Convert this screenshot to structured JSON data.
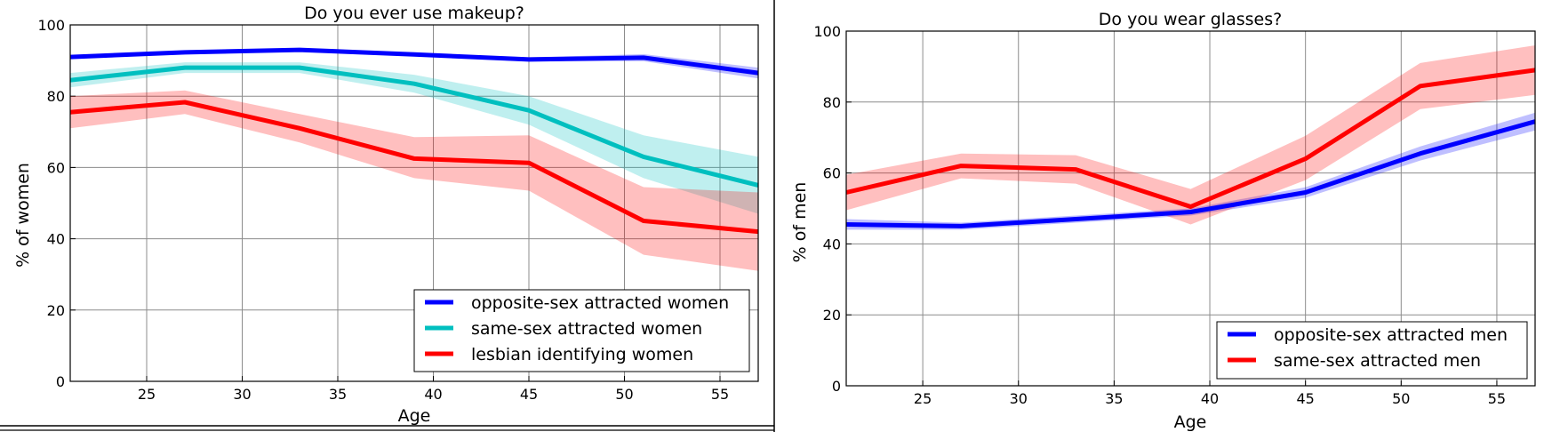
{
  "chart_data": [
    {
      "type": "line",
      "title": "Do you ever use makeup?",
      "xlabel": "Age",
      "ylabel": "% of women",
      "xlim": [
        21,
        57
      ],
      "ylim": [
        0,
        100
      ],
      "xticks": [
        25,
        30,
        35,
        40,
        45,
        50,
        55
      ],
      "yticks": [
        0,
        20,
        40,
        60,
        80,
        100
      ],
      "grid": true,
      "legend_position": "lower-right",
      "x": [
        21,
        27,
        33,
        39,
        45,
        51,
        57
      ],
      "series": [
        {
          "name": "opposite-sex attracted women",
          "color": "#0000ff",
          "values": [
            91,
            92.3,
            93,
            91.7,
            90.3,
            90.8,
            86.5
          ],
          "lower": [
            90.5,
            91.8,
            92.5,
            91.2,
            89.7,
            89.8,
            85
          ],
          "upper": [
            91.5,
            92.8,
            93.5,
            92.2,
            90.9,
            91.8,
            88
          ]
        },
        {
          "name": "same-sex attracted women",
          "color": "#00bfbf",
          "values": [
            84.5,
            88,
            88,
            83.5,
            76,
            63,
            55
          ],
          "lower": [
            82.5,
            86.5,
            86.5,
            81,
            72,
            57,
            47
          ],
          "upper": [
            86.5,
            89.5,
            89.5,
            86,
            80,
            69,
            63
          ]
        },
        {
          "name": "lesbian identifying women",
          "color": "#ff0000",
          "values": [
            75.5,
            78.3,
            71,
            62.5,
            61.3,
            45,
            42
          ],
          "lower": [
            71,
            75,
            67,
            57,
            53.5,
            35.5,
            31
          ],
          "upper": [
            80,
            81.6,
            75,
            68.5,
            69,
            54.5,
            53
          ]
        }
      ]
    },
    {
      "type": "line",
      "title": "Do you wear glasses?",
      "xlabel": "Age",
      "ylabel": "%  of men",
      "xlim": [
        21,
        57
      ],
      "ylim": [
        0,
        100
      ],
      "xticks": [
        25,
        30,
        35,
        40,
        45,
        50,
        55
      ],
      "yticks": [
        0,
        20,
        40,
        60,
        80,
        100
      ],
      "grid": true,
      "legend_position": "lower-right",
      "x": [
        21,
        27,
        33,
        39,
        45,
        51,
        57
      ],
      "series": [
        {
          "name": "opposite-sex attracted men",
          "color": "#0000ff",
          "values": [
            45.5,
            45,
            47,
            49,
            54.5,
            65.5,
            74.5
          ],
          "lower": [
            44,
            44,
            46,
            48,
            53,
            63.5,
            72
          ],
          "upper": [
            47,
            46,
            48,
            50,
            56,
            67.5,
            77
          ]
        },
        {
          "name": "same-sex attracted men",
          "color": "#ff0000",
          "values": [
            54.5,
            62,
            61,
            50.5,
            64,
            84.5,
            89
          ],
          "lower": [
            49.5,
            58.5,
            57,
            45.5,
            58,
            78,
            82
          ],
          "upper": [
            59.5,
            65.5,
            65,
            55.5,
            70.5,
            91,
            96
          ]
        }
      ]
    }
  ]
}
